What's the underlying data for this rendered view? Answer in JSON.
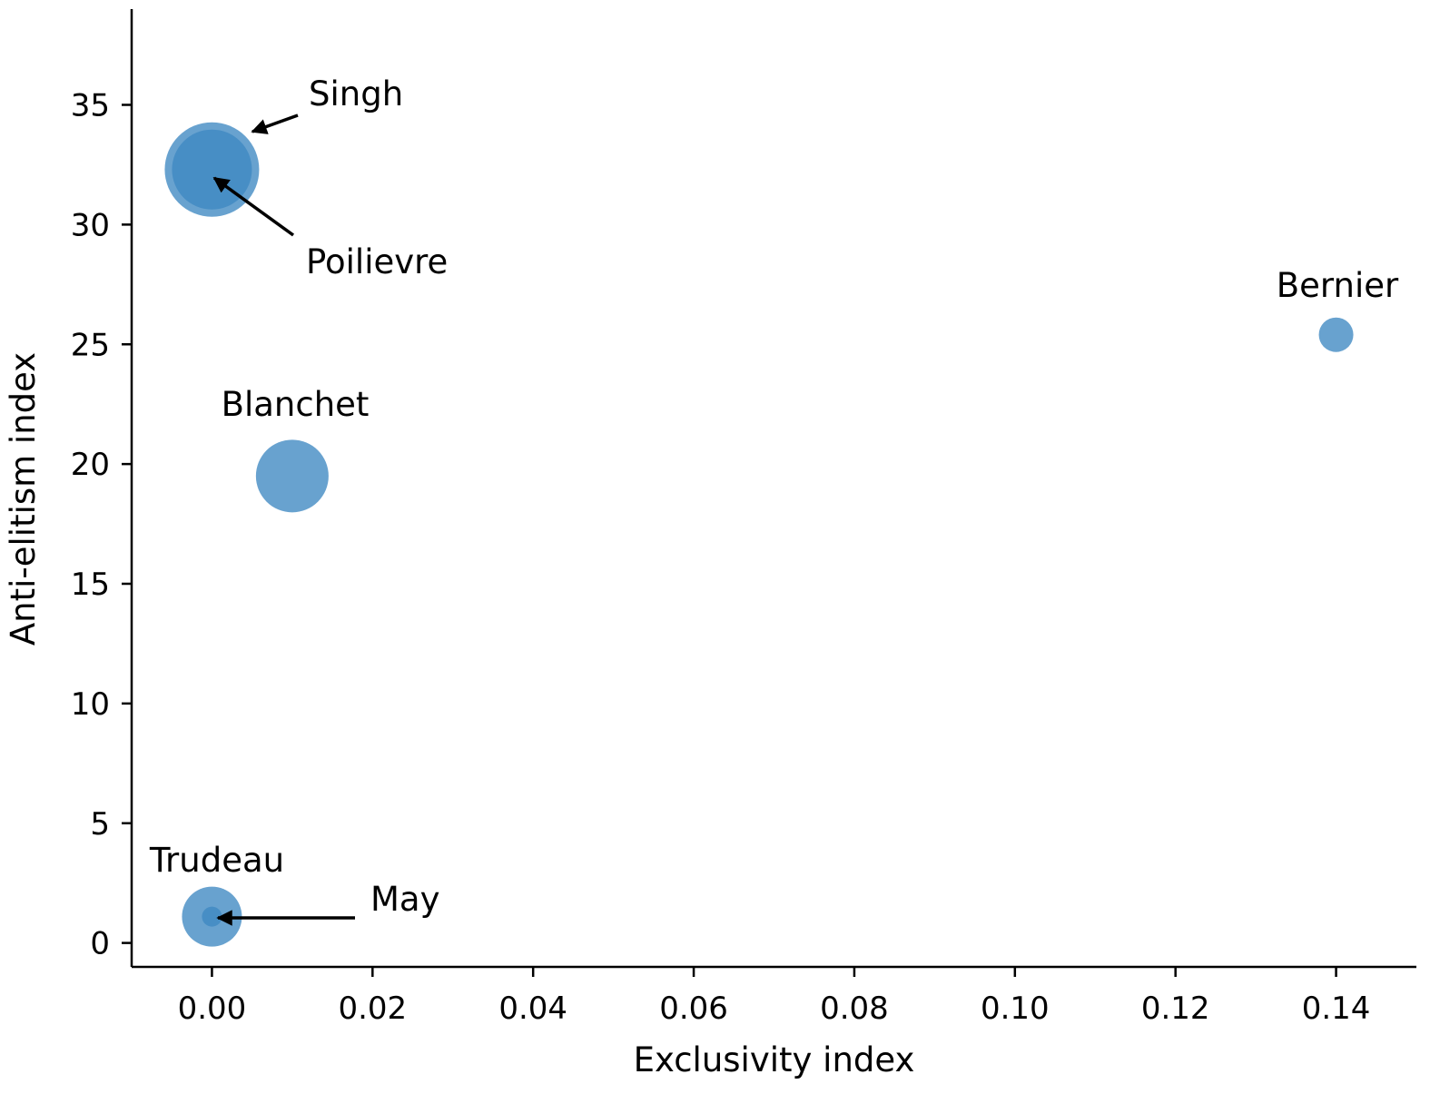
{
  "chart_data": {
    "type": "scatter",
    "title": "",
    "xlabel": "Exclusivity index",
    "ylabel": "Anti-elitism index",
    "xlim": [
      -0.01,
      0.15
    ],
    "ylim": [
      -1.0,
      39.0
    ],
    "x_ticks": [
      0.0,
      0.02,
      0.04,
      0.06,
      0.08,
      0.1,
      0.12,
      0.14
    ],
    "x_tick_labels": [
      "0.00",
      "0.02",
      "0.04",
      "0.06",
      "0.08",
      "0.10",
      "0.12",
      "0.14"
    ],
    "y_ticks": [
      0,
      5,
      10,
      15,
      20,
      25,
      30,
      35
    ],
    "y_tick_labels": [
      "0",
      "5",
      "10",
      "15",
      "20",
      "25",
      "30",
      "35"
    ],
    "grid": false,
    "bubble_color": "#3d88c2",
    "annotation_color": "#000000",
    "points": [
      {
        "label": "Singh",
        "x": 0.0,
        "y": 32.3,
        "size": 52,
        "annotation": "arrow"
      },
      {
        "label": "Poilievre",
        "x": 0.0,
        "y": 32.3,
        "size": 44,
        "annotation": "arrow"
      },
      {
        "label": "Bernier",
        "x": 0.14,
        "y": 25.4,
        "size": 19,
        "annotation": "above"
      },
      {
        "label": "Blanchet",
        "x": 0.01,
        "y": 19.5,
        "size": 40,
        "annotation": "above"
      },
      {
        "label": "Trudeau",
        "x": 0.0,
        "y": 1.1,
        "size": 33,
        "annotation": "above"
      },
      {
        "label": "May",
        "x": 0.0,
        "y": 1.1,
        "size": 11,
        "annotation": "arrow"
      }
    ]
  }
}
